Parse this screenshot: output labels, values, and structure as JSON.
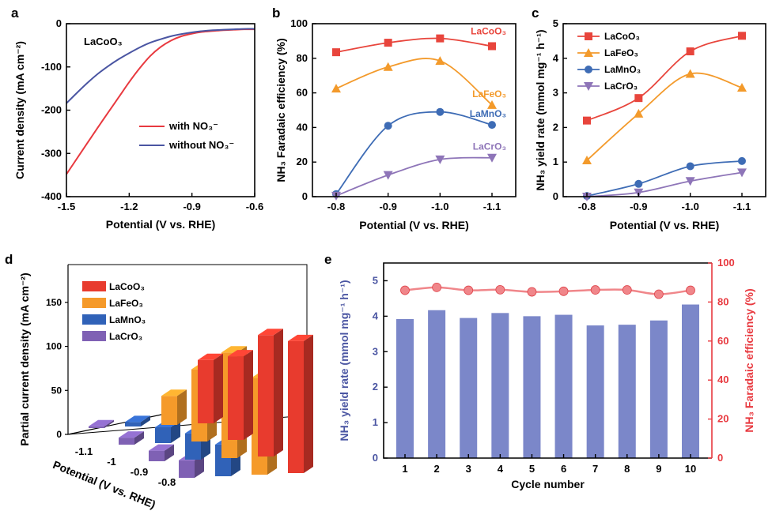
{
  "chart_data": [
    {
      "panel": "a",
      "type": "line",
      "annotation": "LaCoO₃",
      "xlabel": "Potential (V vs. RHE)",
      "ylabel": "Current density (mA cm⁻²)",
      "xlim": [
        -1.5,
        -0.6
      ],
      "ylim": [
        -400,
        0
      ],
      "xticks": [
        "-1.5",
        "-1.2",
        "-0.9",
        "-0.6"
      ],
      "yticks": [
        "0",
        "-100",
        "-200",
        "-300",
        "-400"
      ],
      "legend_position": "center-right",
      "series": [
        {
          "name": "with NO₃⁻",
          "color": "#e8393f",
          "x": [
            -1.5,
            -1.45,
            -1.4,
            -1.35,
            -1.3,
            -1.25,
            -1.2,
            -1.15,
            -1.1,
            -1.05,
            -1.0,
            -0.95,
            -0.9,
            -0.85,
            -0.8,
            -0.75,
            -0.7,
            -0.65,
            -0.6
          ],
          "y": [
            -348,
            -312,
            -276,
            -240,
            -205,
            -170,
            -135,
            -103,
            -75,
            -54,
            -39,
            -29,
            -23,
            -19,
            -17,
            -15,
            -14,
            -13,
            -13
          ]
        },
        {
          "name": "without NO₃⁻",
          "color": "#4a55a2",
          "x": [
            -1.5,
            -1.45,
            -1.4,
            -1.35,
            -1.3,
            -1.25,
            -1.2,
            -1.15,
            -1.1,
            -1.05,
            -1.0,
            -0.95,
            -0.9,
            -0.85,
            -0.8,
            -0.75,
            -0.7,
            -0.65,
            -0.6
          ],
          "y": [
            -184,
            -160,
            -137,
            -116,
            -98,
            -82,
            -68,
            -55,
            -44,
            -36,
            -29,
            -24,
            -20,
            -17,
            -15,
            -14,
            -13,
            -12,
            -12
          ]
        }
      ]
    },
    {
      "panel": "b",
      "type": "line",
      "xlabel": "Potential (V vs. RHE)",
      "ylabel": "NH₃ Faradaic efficiency (%)",
      "categories": [
        "-0.8",
        "-0.9",
        "-1.0",
        "-1.1"
      ],
      "ylim": [
        0,
        100
      ],
      "yticks": [
        "0",
        "20",
        "40",
        "60",
        "80",
        "100"
      ],
      "series": [
        {
          "name": "LaCoO₃",
          "color": "#e8453c",
          "marker": "square",
          "values": [
            83.5,
            89,
            91.5,
            87
          ]
        },
        {
          "name": "LaFeO₃",
          "color": "#f39a2b",
          "marker": "triangle-up",
          "values": [
            62.5,
            75,
            78.5,
            53
          ]
        },
        {
          "name": "LaMnO₃",
          "color": "#3e6cb5",
          "marker": "circle",
          "values": [
            1.5,
            41,
            49,
            41.5
          ]
        },
        {
          "name": "LaCrO₃",
          "color": "#8e75b8",
          "marker": "triangle-down",
          "values": [
            0.5,
            12.5,
            21.5,
            22.5
          ]
        }
      ]
    },
    {
      "panel": "c",
      "type": "line",
      "xlabel": "Potential (V vs. RHE)",
      "ylabel": "NH₃ yield rate (mmol mg⁻¹ h⁻¹)",
      "categories": [
        "-0.8",
        "-0.9",
        "-1.0",
        "-1.1"
      ],
      "ylim": [
        0,
        5
      ],
      "yticks": [
        "0",
        "1",
        "2",
        "3",
        "4",
        "5"
      ],
      "legend_position": "top-left",
      "series": [
        {
          "name": "LaCoO₃",
          "color": "#e8453c",
          "marker": "square",
          "values": [
            2.2,
            2.85,
            4.2,
            4.65
          ]
        },
        {
          "name": "LaFeO₃",
          "color": "#f39a2b",
          "marker": "triangle-up",
          "values": [
            1.05,
            2.4,
            3.55,
            3.15
          ]
        },
        {
          "name": "LaMnO₃",
          "color": "#3e6cb5",
          "marker": "circle",
          "values": [
            0.02,
            0.37,
            0.88,
            1.03
          ]
        },
        {
          "name": "LaCrO₃",
          "color": "#8e75b8",
          "marker": "triangle-down",
          "values": [
            0.0,
            0.12,
            0.45,
            0.7
          ]
        }
      ]
    },
    {
      "panel": "d",
      "type": "bar",
      "subtype": "3d-bar",
      "xlabel": "Potential (V vs. RHE)",
      "zlabel": "Partial current density (mA cm⁻²)",
      "categories": [
        "-1.1",
        "-1",
        "-0.9",
        "-0.8"
      ],
      "zticks": [
        "0",
        "50",
        "100",
        "150"
      ],
      "zlim": [
        0,
        175
      ],
      "legend_position": "top-left",
      "series": [
        {
          "name": "LaCoO₃",
          "color": "#e83b2e",
          "values": [
            72,
            95,
            138,
            150
          ]
        },
        {
          "name": "LaFeO₃",
          "color": "#f59a2a",
          "values": [
            33,
            82,
            120,
            110
          ]
        },
        {
          "name": "LaMnO₃",
          "color": "#3062b8",
          "values": [
            5,
            18,
            30,
            36
          ]
        },
        {
          "name": "LaCrO₃",
          "color": "#7f61b4",
          "values": [
            2,
            8,
            12,
            20
          ]
        }
      ]
    },
    {
      "panel": "e",
      "type": "bar",
      "xlabel": "Cycle number",
      "ylabel_left": "NH₃ yield rate (mmol mg⁻¹ h⁻¹)",
      "ylabel_right": "NH₃ Faradaic efficiency (%)",
      "categories": [
        "1",
        "2",
        "3",
        "4",
        "5",
        "6",
        "7",
        "8",
        "9",
        "10"
      ],
      "ylim_left": [
        0,
        5.5
      ],
      "yticks_left": [
        "0",
        "1",
        "2",
        "3",
        "4",
        "5"
      ],
      "ylim_right": [
        0,
        100
      ],
      "yticks_right": [
        "0",
        "20",
        "40",
        "60",
        "80",
        "100"
      ],
      "series": [
        {
          "name": "NH₃ yield rate",
          "color": "#7b87c9",
          "type": "bar",
          "axis": "left",
          "values": [
            3.92,
            4.17,
            3.95,
            4.09,
            4.0,
            4.04,
            3.74,
            3.76,
            3.88,
            4.33
          ]
        },
        {
          "name": "NH₃ Faradaic efficiency",
          "color": "#f0868a",
          "type": "line",
          "axis": "right",
          "values": [
            86,
            87.5,
            86,
            86.3,
            85.2,
            85.5,
            86.2,
            86.2,
            84,
            86
          ]
        }
      ]
    }
  ]
}
